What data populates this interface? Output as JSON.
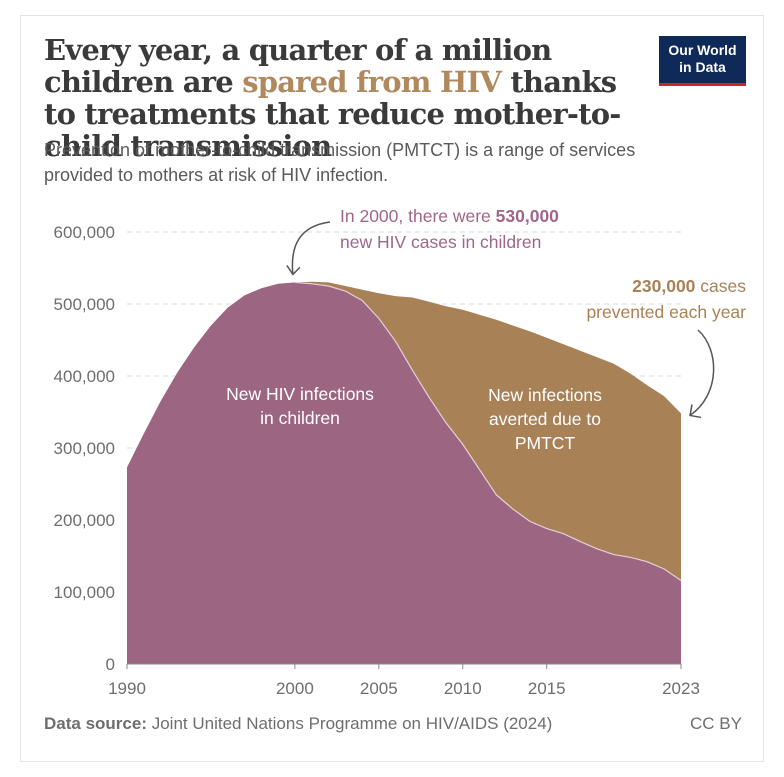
{
  "title": {
    "before": "Every year, a quarter of a million children are ",
    "highlight": "spared from HIV",
    "after": " thanks to treatments that reduce mother-to-child transmission"
  },
  "subtitle": "Prevention of mother-to-child transmission (PMTCT) is a range of services provided to mothers at risk of HIV infection.",
  "logo": {
    "line1": "Our World",
    "line2": "in Data"
  },
  "footer": {
    "source_label": "Data source:",
    "source_text": " Joint United Nations Programme on HIV/AIDS (2024)",
    "license": "CC BY"
  },
  "colors": {
    "infections": "#9c6683",
    "averted": "#a88157",
    "grid": "#d4dde3",
    "axis": "#8a8a8a",
    "text": "#6e6e6e",
    "annotation_pink": "#a0668a",
    "annotation_tan": "#a88157"
  },
  "chart_data": {
    "type": "area",
    "stacked": true,
    "x": [
      1990,
      1991,
      1992,
      1993,
      1994,
      1995,
      1996,
      1997,
      1998,
      1999,
      2000,
      2001,
      2002,
      2003,
      2004,
      2005,
      2006,
      2007,
      2008,
      2009,
      2010,
      2011,
      2012,
      2013,
      2014,
      2015,
      2016,
      2017,
      2018,
      2019,
      2020,
      2021,
      2022,
      2023
    ],
    "series": [
      {
        "name": "New HIV infections in children",
        "label_lines": [
          "New HIV infections",
          "in children"
        ],
        "values": [
          273000,
          320000,
          365000,
          405000,
          440000,
          470000,
          495000,
          512000,
          522000,
          528000,
          530000,
          528000,
          525000,
          518000,
          505000,
          480000,
          448000,
          408000,
          370000,
          335000,
          305000,
          270000,
          235000,
          215000,
          198000,
          188000,
          181000,
          170000,
          160000,
          152000,
          148000,
          142000,
          132000,
          116000
        ]
      },
      {
        "name": "New infections averted due to PMTCT",
        "label_lines": [
          "New infections",
          "averted due to",
          "PMTCT"
        ],
        "values": [
          0,
          0,
          0,
          0,
          0,
          0,
          0,
          0,
          0,
          0,
          0,
          3000,
          5000,
          7000,
          15000,
          35000,
          63000,
          101000,
          133000,
          162000,
          187000,
          215000,
          243000,
          255000,
          264000,
          265000,
          263000,
          265000,
          266000,
          265000,
          255000,
          245000,
          240000,
          232000
        ]
      }
    ],
    "ylim": [
      0,
      600000
    ],
    "yticks": [
      0,
      100000,
      200000,
      300000,
      400000,
      500000,
      600000
    ],
    "ytick_labels": [
      "0",
      "100,000",
      "200,000",
      "300,000",
      "400,000",
      "500,000",
      "600,000"
    ],
    "xticks": [
      1990,
      2000,
      2005,
      2010,
      2015,
      2023
    ],
    "xtick_labels": [
      "1990",
      "2000",
      "2005",
      "2010",
      "2015",
      "2023"
    ],
    "annotations": [
      {
        "text_before": "In 2000, there were ",
        "bold": "530,000",
        "line2": "new HIV cases in children",
        "x": 2000,
        "y": 530000
      },
      {
        "bold": "230,000",
        "text_after": " cases",
        "line2": "prevented each year",
        "x": 2023,
        "y": 348000
      }
    ]
  }
}
